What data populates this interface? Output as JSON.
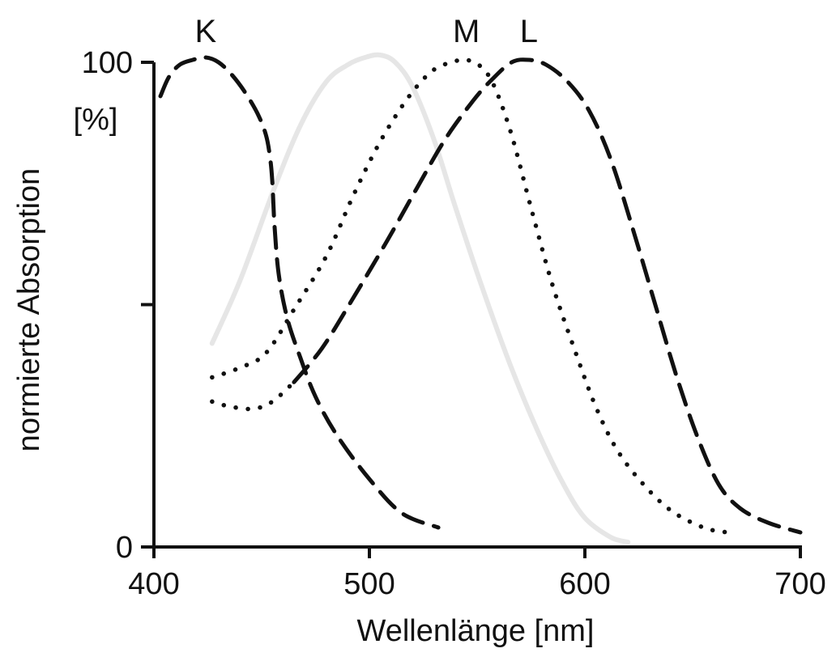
{
  "chart_data": {
    "type": "line",
    "xlabel": "Wellenlänge [nm]",
    "ylabel": "normierte Absorption",
    "y_unit_label": "[%]",
    "xlim": [
      400,
      700
    ],
    "ylim": [
      0,
      100
    ],
    "x_ticks": [
      400,
      500,
      600,
      700
    ],
    "y_ticks": [
      0,
      50,
      100
    ],
    "y_tick_labels": [
      "0",
      "",
      "100"
    ],
    "x_tick_labels": [
      "400",
      "500",
      "600",
      "700"
    ],
    "grid": false,
    "legend": "none; series labels printed above curve peaks",
    "colors": {
      "ink": "#111111",
      "ghost": "#e6e6e6",
      "background": "#ffffff"
    },
    "series": [
      {
        "name": "K",
        "style": "dashed",
        "x": [
          403,
          407,
          412,
          418,
          424,
          430,
          436,
          442,
          448,
          452,
          454,
          455,
          456,
          458,
          462,
          468,
          475,
          485,
          500,
          515,
          532
        ],
        "y": [
          93,
          97,
          99.5,
          100.5,
          101,
          100,
          97.5,
          94,
          89.5,
          85,
          80,
          75,
          66,
          56,
          47,
          39,
          31,
          23,
          14,
          7,
          4
        ]
      },
      {
        "name": "M",
        "style": "dotted",
        "x": [
          427,
          440,
          452,
          465,
          480,
          492,
          503,
          513,
          522,
          530,
          538,
          545,
          552,
          558,
          566,
          575,
          585,
          595,
          605,
          615,
          627,
          640,
          655,
          666
        ],
        "y": [
          35,
          37,
          40,
          49,
          60,
          72,
          82,
          89.5,
          95,
          98.5,
          100,
          100.5,
          99,
          95,
          85,
          70,
          54,
          41,
          29,
          20,
          13,
          7.5,
          4,
          3
        ]
      },
      {
        "name": "L",
        "style": "dotted-dashed",
        "x": [
          427,
          435,
          446,
          455,
          465,
          478,
          492,
          508,
          522,
          535,
          548,
          557,
          566,
          574,
          582,
          592,
          602,
          612,
          622,
          632,
          642,
          652,
          662,
          672,
          685,
          700
        ],
        "y": [
          30,
          29,
          28.5,
          30,
          34,
          41,
          51,
          63,
          74,
          84,
          92,
          96.5,
          100,
          100.5,
          99.5,
          96,
          90,
          80,
          66,
          51,
          36,
          23,
          13,
          8,
          5,
          3
        ]
      },
      {
        "name": "",
        "style": "ghost",
        "x": [
          427,
          440,
          455,
          468,
          480,
          490,
          498,
          505,
          512,
          520,
          530,
          540,
          552,
          565,
          578,
          590,
          600,
          612,
          620
        ],
        "y": [
          42,
          55,
          73,
          87,
          96,
          99.5,
          101,
          101.5,
          100,
          95,
          84,
          70,
          54,
          38,
          24,
          13,
          6,
          2,
          1
        ]
      }
    ]
  }
}
